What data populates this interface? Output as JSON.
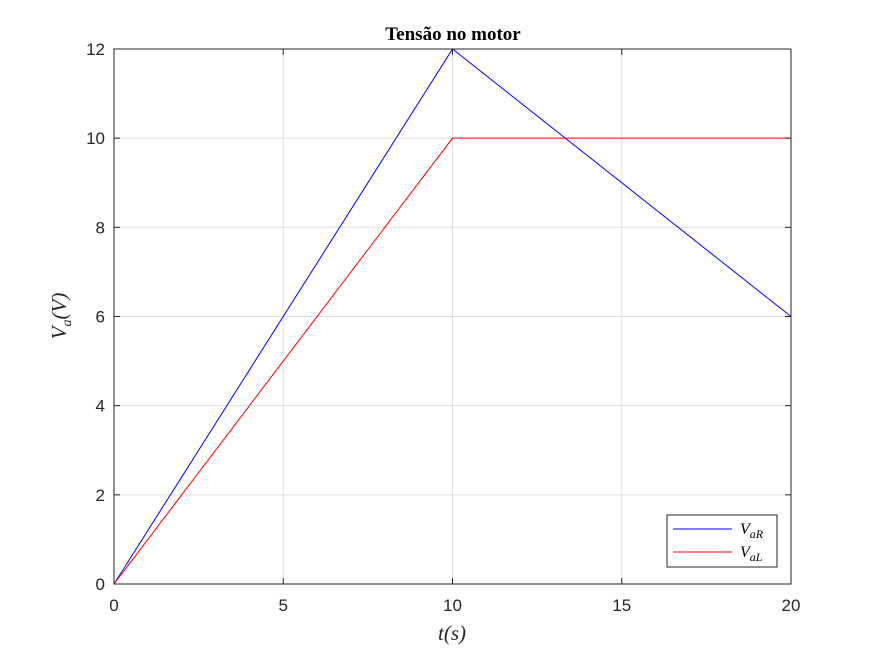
{
  "chart_data": {
    "type": "line",
    "title": "Tensão no motor",
    "xlabel": "t(s)",
    "ylabel": "V_a(V)",
    "xlim": [
      0,
      20
    ],
    "ylim": [
      0,
      12
    ],
    "xticks": [
      0,
      5,
      10,
      15,
      20
    ],
    "yticks": [
      0,
      2,
      4,
      6,
      8,
      10,
      12
    ],
    "grid": true,
    "legend_position": "bottom-right",
    "series": [
      {
        "name": "V_aR",
        "color": "#0000ff",
        "x": [
          0,
          10,
          20
        ],
        "y": [
          0,
          12,
          6
        ]
      },
      {
        "name": "V_aL",
        "color": "#ff0000",
        "x": [
          0,
          10,
          20
        ],
        "y": [
          0,
          10,
          10
        ]
      }
    ]
  },
  "legend": {
    "entries": [
      {
        "base": "V",
        "sub": "aR"
      },
      {
        "base": "V",
        "sub": "aL"
      }
    ]
  },
  "ylabel_parts": {
    "base": "V",
    "sub": "a",
    "rest": "(V)"
  }
}
